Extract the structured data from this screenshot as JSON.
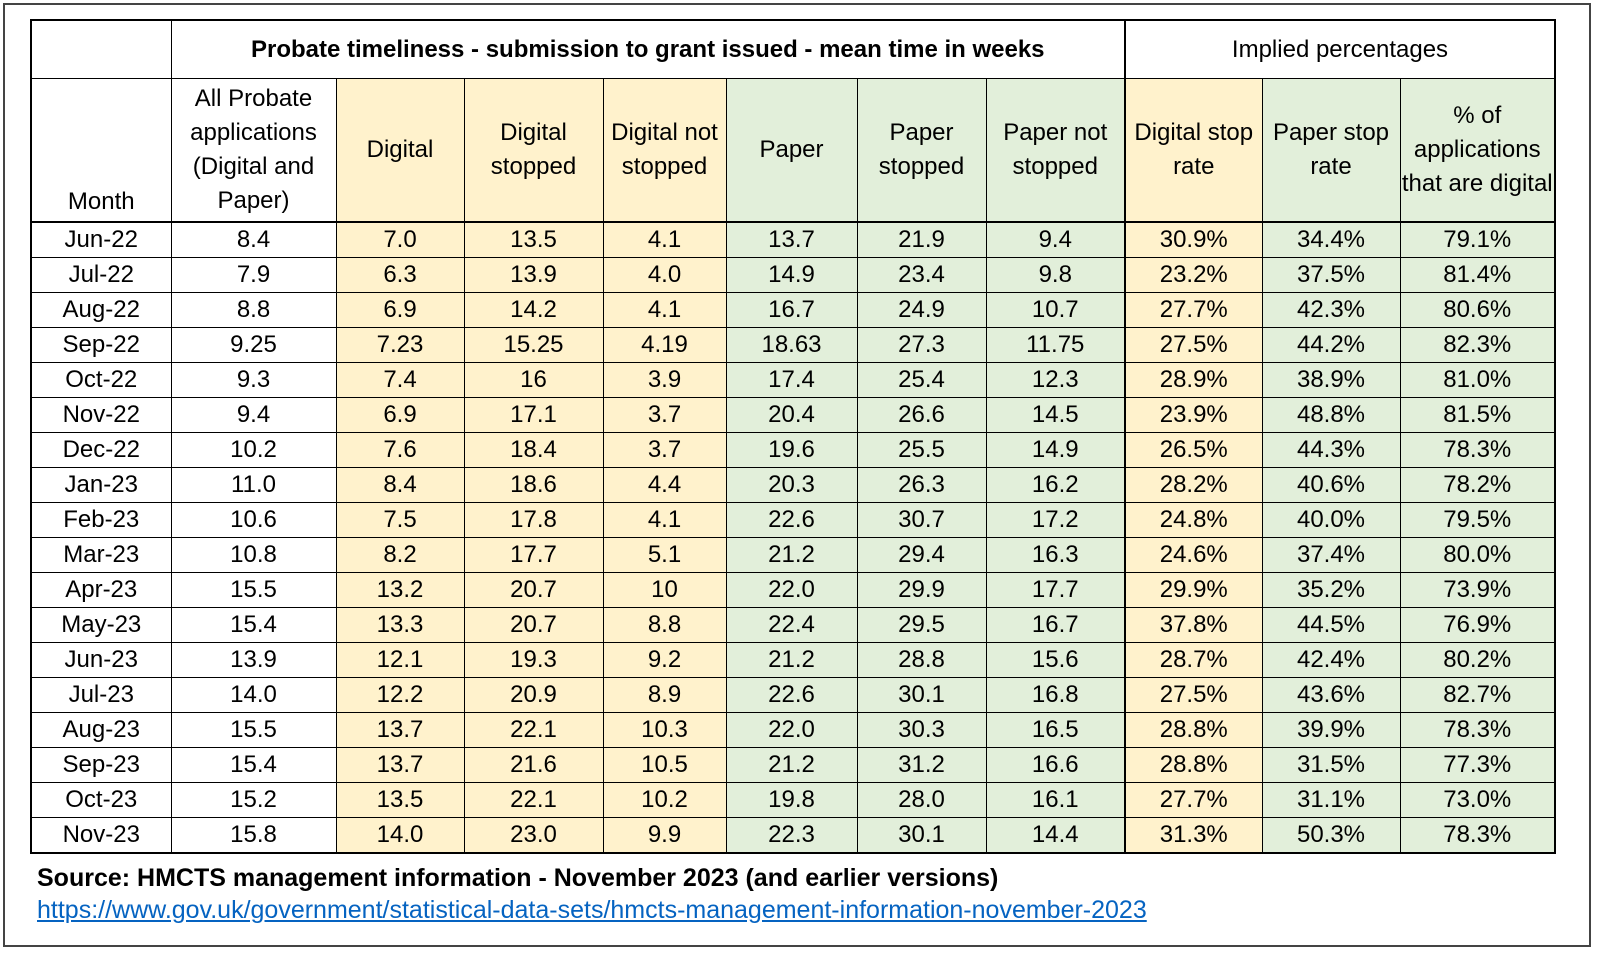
{
  "header": {
    "main_title": "Probate timeliness - submission to grant issued - mean time in weeks",
    "implied_title": "Implied percentages"
  },
  "columns": [
    "Month",
    "All Probate applications (Digital and Paper)",
    "Digital",
    "Digital stopped",
    "Digital not stopped",
    "Paper",
    "Paper stopped",
    "Paper not stopped",
    "Digital stop rate",
    "Paper stop rate",
    "% of applications that are digital"
  ],
  "colors": {
    "digital_fill": "#fff2cc",
    "paper_fill": "#e2efda",
    "border": "#000000",
    "link": "#0563c1"
  },
  "chart_data": {
    "type": "table",
    "title": "Probate timeliness - submission to grant issued - mean time in weeks",
    "rows": [
      [
        "Jun-22",
        "8.4",
        "7.0",
        "13.5",
        "4.1",
        "13.7",
        "21.9",
        "9.4",
        "30.9%",
        "34.4%",
        "79.1%"
      ],
      [
        "Jul-22",
        "7.9",
        "6.3",
        "13.9",
        "4.0",
        "14.9",
        "23.4",
        "9.8",
        "23.2%",
        "37.5%",
        "81.4%"
      ],
      [
        "Aug-22",
        "8.8",
        "6.9",
        "14.2",
        "4.1",
        "16.7",
        "24.9",
        "10.7",
        "27.7%",
        "42.3%",
        "80.6%"
      ],
      [
        "Sep-22",
        "9.25",
        "7.23",
        "15.25",
        "4.19",
        "18.63",
        "27.3",
        "11.75",
        "27.5%",
        "44.2%",
        "82.3%"
      ],
      [
        "Oct-22",
        "9.3",
        "7.4",
        "16",
        "3.9",
        "17.4",
        "25.4",
        "12.3",
        "28.9%",
        "38.9%",
        "81.0%"
      ],
      [
        "Nov-22",
        "9.4",
        "6.9",
        "17.1",
        "3.7",
        "20.4",
        "26.6",
        "14.5",
        "23.9%",
        "48.8%",
        "81.5%"
      ],
      [
        "Dec-22",
        "10.2",
        "7.6",
        "18.4",
        "3.7",
        "19.6",
        "25.5",
        "14.9",
        "26.5%",
        "44.3%",
        "78.3%"
      ],
      [
        "Jan-23",
        "11.0",
        "8.4",
        "18.6",
        "4.4",
        "20.3",
        "26.3",
        "16.2",
        "28.2%",
        "40.6%",
        "78.2%"
      ],
      [
        "Feb-23",
        "10.6",
        "7.5",
        "17.8",
        "4.1",
        "22.6",
        "30.7",
        "17.2",
        "24.8%",
        "40.0%",
        "79.5%"
      ],
      [
        "Mar-23",
        "10.8",
        "8.2",
        "17.7",
        "5.1",
        "21.2",
        "29.4",
        "16.3",
        "24.6%",
        "37.4%",
        "80.0%"
      ],
      [
        "Apr-23",
        "15.5",
        "13.2",
        "20.7",
        "10",
        "22.0",
        "29.9",
        "17.7",
        "29.9%",
        "35.2%",
        "73.9%"
      ],
      [
        "May-23",
        "15.4",
        "13.3",
        "20.7",
        "8.8",
        "22.4",
        "29.5",
        "16.7",
        "37.8%",
        "44.5%",
        "76.9%"
      ],
      [
        "Jun-23",
        "13.9",
        "12.1",
        "19.3",
        "9.2",
        "21.2",
        "28.8",
        "15.6",
        "28.7%",
        "42.4%",
        "80.2%"
      ],
      [
        "Jul-23",
        "14.0",
        "12.2",
        "20.9",
        "8.9",
        "22.6",
        "30.1",
        "16.8",
        "27.5%",
        "43.6%",
        "82.7%"
      ],
      [
        "Aug-23",
        "15.5",
        "13.7",
        "22.1",
        "10.3",
        "22.0",
        "30.3",
        "16.5",
        "28.8%",
        "39.9%",
        "78.3%"
      ],
      [
        "Sep-23",
        "15.4",
        "13.7",
        "21.6",
        "10.5",
        "21.2",
        "31.2",
        "16.6",
        "28.8%",
        "31.5%",
        "77.3%"
      ],
      [
        "Oct-23",
        "15.2",
        "13.5",
        "22.1",
        "10.2",
        "19.8",
        "28.0",
        "16.1",
        "27.7%",
        "31.1%",
        "73.0%"
      ],
      [
        "Nov-23",
        "15.8",
        "14.0",
        "23.0",
        "9.9",
        "22.3",
        "30.1",
        "14.4",
        "31.3%",
        "50.3%",
        "78.3%"
      ]
    ]
  },
  "footer": {
    "source": "Source: HMCTS management information - November 2023 (and earlier versions)",
    "link": "https://www.gov.uk/government/statistical-data-sets/hmcts-management-information-november-2023"
  }
}
